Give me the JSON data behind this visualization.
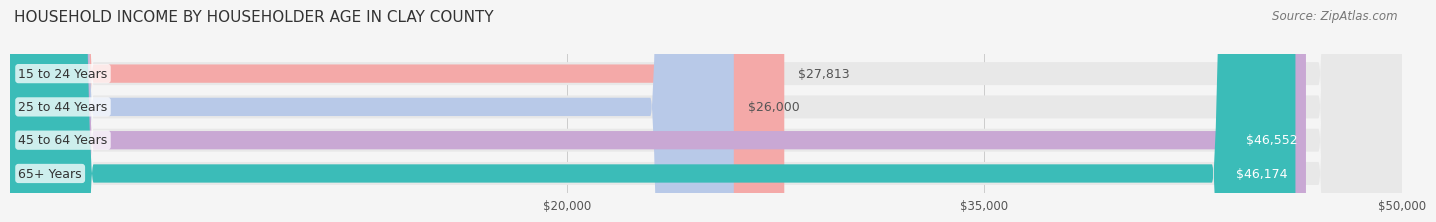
{
  "title": "HOUSEHOLD INCOME BY HOUSEHOLDER AGE IN CLAY COUNTY",
  "source": "Source: ZipAtlas.com",
  "categories": [
    "15 to 24 Years",
    "25 to 44 Years",
    "45 to 64 Years",
    "65+ Years"
  ],
  "values": [
    27813,
    26000,
    46552,
    46174
  ],
  "bar_colors": [
    "#F4A9A8",
    "#B8C9E8",
    "#C9A8D4",
    "#3BBCB8"
  ],
  "value_labels": [
    "$27,813",
    "$26,000",
    "$46,552",
    "$46,174"
  ],
  "label_colors": [
    "#555555",
    "#555555",
    "#ffffff",
    "#ffffff"
  ],
  "xmin": 0,
  "xmax": 50000,
  "xticks": [
    20000,
    35000,
    50000
  ],
  "xticklabels": [
    "$20,000",
    "$35,000",
    "$50,000"
  ],
  "background_color": "#f5f5f5",
  "bar_background_color": "#e8e8e8",
  "title_fontsize": 11,
  "source_fontsize": 8.5,
  "label_fontsize": 9,
  "bar_height": 0.55
}
